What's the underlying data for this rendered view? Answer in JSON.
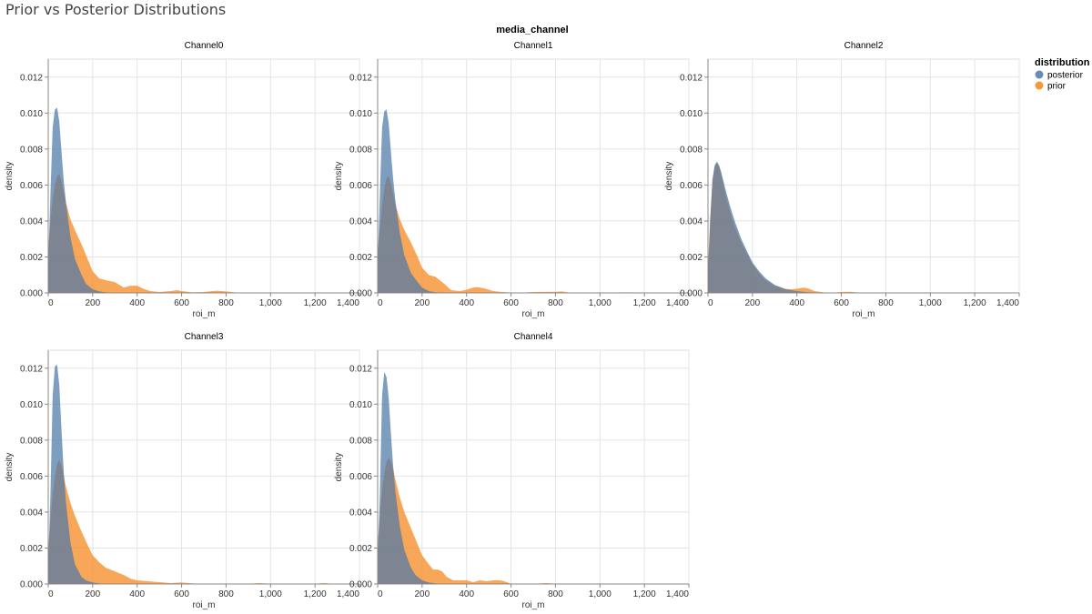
{
  "page": {
    "title": "Prior vs Posterior Distributions"
  },
  "chart_data": {
    "type": "area",
    "facet_field": "media_channel",
    "x_label": "roi_m",
    "y_label": "density",
    "xlim": [
      0,
      1400
    ],
    "ylim": [
      0,
      0.013
    ],
    "x_ticks": [
      0,
      200,
      400,
      600,
      800,
      1000,
      1200,
      1400
    ],
    "x_tick_labels": [
      "0",
      "200",
      "400",
      "600",
      "800",
      "1,000",
      "1,200",
      "1,400"
    ],
    "y_ticks": [
      0,
      0.002,
      0.004,
      0.006,
      0.008,
      0.01,
      0.012
    ],
    "y_tick_labels": [
      "0.000",
      "0.002",
      "0.004",
      "0.006",
      "0.008",
      "0.010",
      "0.012"
    ],
    "grid": true,
    "legend": {
      "title": "distribution",
      "position": "right",
      "items": [
        {
          "label": "posterior",
          "color": "#4c78a8"
        },
        {
          "label": "prior",
          "color": "#f58518"
        }
      ]
    },
    "panels": [
      {
        "title": "Channel0",
        "series": [
          {
            "name": "prior",
            "x": [
              0,
              10,
              20,
              30,
              40,
              50,
              60,
              70,
              80,
              100,
              120,
              150,
              180,
              200,
              230,
              260,
              300,
              340,
              370,
              400,
              430,
              460,
              500,
              550,
              580,
              600,
              650,
              700,
              740,
              760,
              800,
              850,
              900,
              1000,
              1100,
              1300,
              1400
            ],
            "y": [
              0.0025,
              0.004,
              0.0052,
              0.006,
              0.0065,
              0.0066,
              0.0062,
              0.0056,
              0.005,
              0.0041,
              0.0035,
              0.0027,
              0.0018,
              0.0012,
              0.0008,
              0.0007,
              0.0006,
              0.0003,
              0.0004,
              0.0004,
              0.00022,
              0.0001,
              5e-05,
              0.0001,
              0.00015,
              0.0001,
              3e-05,
              5e-05,
              0.0001,
              0.00012,
              8e-05,
              2e-05,
              1e-05,
              1e-05,
              1e-05,
              1e-05,
              1e-05
            ]
          },
          {
            "name": "posterior",
            "x": [
              0,
              10,
              20,
              30,
              40,
              50,
              60,
              70,
              80,
              100,
              120,
              150,
              170,
              200,
              230,
              260,
              300,
              400,
              1400
            ],
            "y": [
              0.0015,
              0.0055,
              0.0092,
              0.0102,
              0.0103,
              0.0095,
              0.0078,
              0.0062,
              0.005,
              0.0031,
              0.0019,
              0.001,
              0.0005,
              0.0002,
              8e-05,
              3e-05,
              1e-05,
              0,
              0
            ]
          }
        ]
      },
      {
        "title": "Channel1",
        "series": [
          {
            "name": "prior",
            "x": [
              0,
              10,
              20,
              30,
              40,
              50,
              60,
              70,
              80,
              100,
              120,
              150,
              180,
              200,
              230,
              260,
              280,
              300,
              330,
              370,
              400,
              430,
              450,
              480,
              520,
              560,
              600,
              650,
              700,
              800,
              830,
              860,
              1000,
              1100,
              1400
            ],
            "y": [
              0.0022,
              0.0035,
              0.0048,
              0.0058,
              0.0064,
              0.0065,
              0.0061,
              0.0055,
              0.0049,
              0.0041,
              0.0035,
              0.0028,
              0.002,
              0.0014,
              0.001,
              0.0009,
              0.0007,
              0.0005,
              0.00015,
              0.0001,
              0.00018,
              0.0003,
              0.00032,
              0.00025,
              0.0001,
              5e-05,
              2e-05,
              1e-05,
              5e-05,
              6e-05,
              8e-05,
              2e-05,
              1e-05,
              3e-05,
              1e-05
            ]
          },
          {
            "name": "posterior",
            "x": [
              0,
              10,
              20,
              30,
              40,
              50,
              60,
              70,
              80,
              100,
              120,
              150,
              180,
              200,
              230,
              260,
              300,
              400,
              1400
            ],
            "y": [
              0.0015,
              0.0055,
              0.0092,
              0.0101,
              0.0102,
              0.0094,
              0.0078,
              0.0063,
              0.0051,
              0.0033,
              0.0021,
              0.0011,
              0.0006,
              0.0003,
              0.0001,
              4e-05,
              1e-05,
              0,
              0
            ]
          }
        ]
      },
      {
        "title": "Channel2",
        "series": [
          {
            "name": "prior",
            "x": [
              0,
              10,
              20,
              30,
              40,
              50,
              60,
              70,
              80,
              100,
              120,
              150,
              180,
              200,
              230,
              260,
              300,
              350,
              380,
              410,
              430,
              450,
              480,
              520,
              560,
              600,
              640,
              680,
              720,
              800,
              1400
            ],
            "y": [
              0.0015,
              0.0042,
              0.0062,
              0.007,
              0.0072,
              0.007,
              0.0065,
              0.006,
              0.0054,
              0.0045,
              0.0037,
              0.0028,
              0.0021,
              0.0016,
              0.0011,
              0.0007,
              0.0004,
              0.00022,
              0.0002,
              0.00025,
              0.0003,
              0.00025,
              0.0001,
              3e-05,
              1e-05,
              5e-05,
              6e-05,
              2e-05,
              1e-05,
              0,
              0
            ]
          },
          {
            "name": "posterior",
            "x": [
              0,
              10,
              20,
              30,
              40,
              50,
              60,
              70,
              80,
              100,
              120,
              150,
              180,
              200,
              230,
              260,
              300,
              350,
              400,
              450,
              500,
              550,
              1400
            ],
            "y": [
              0.001,
              0.004,
              0.0063,
              0.0071,
              0.0073,
              0.0071,
              0.0067,
              0.0062,
              0.0057,
              0.0048,
              0.004,
              0.003,
              0.0022,
              0.0017,
              0.0012,
              0.0008,
              0.00045,
              0.0002,
              0.0001,
              4e-05,
              1e-05,
              0,
              0
            ]
          }
        ]
      },
      {
        "title": "Channel3",
        "series": [
          {
            "name": "prior",
            "x": [
              0,
              10,
              20,
              30,
              40,
              50,
              60,
              70,
              80,
              100,
              120,
              150,
              180,
              200,
              230,
              260,
              300,
              340,
              370,
              400,
              450,
              500,
              550,
              600,
              650,
              700,
              900,
              950,
              1000,
              1200,
              1240,
              1280,
              1400
            ],
            "y": [
              0.002,
              0.0035,
              0.005,
              0.006,
              0.0067,
              0.0069,
              0.0066,
              0.006,
              0.0054,
              0.0045,
              0.0038,
              0.0029,
              0.0021,
              0.0016,
              0.0012,
              0.0009,
              0.0007,
              0.0005,
              0.0003,
              0.0002,
              0.00015,
              0.0001,
              5e-05,
              8e-05,
              3e-05,
              1e-05,
              1e-05,
              5e-05,
              1e-05,
              1e-05,
              5e-05,
              1e-05,
              0
            ]
          },
          {
            "name": "posterior",
            "x": [
              0,
              10,
              20,
              30,
              40,
              50,
              60,
              70,
              80,
              100,
              120,
              150,
              170,
              200,
              230,
              260,
              300,
              1400
            ],
            "y": [
              0.001,
              0.005,
              0.0105,
              0.0121,
              0.0122,
              0.011,
              0.0085,
              0.0062,
              0.0045,
              0.0023,
              0.0011,
              0.0004,
              0.0002,
              8e-05,
              3e-05,
              1e-05,
              0,
              0
            ]
          }
        ]
      },
      {
        "title": "Channel4",
        "series": [
          {
            "name": "prior",
            "x": [
              0,
              10,
              20,
              30,
              40,
              50,
              60,
              70,
              80,
              100,
              120,
              150,
              180,
              200,
              230,
              250,
              270,
              290,
              310,
              340,
              370,
              400,
              430,
              460,
              490,
              520,
              550,
              570,
              600,
              650,
              700,
              760,
              800,
              900,
              1000,
              1400
            ],
            "y": [
              0.0022,
              0.0038,
              0.0052,
              0.0062,
              0.0068,
              0.007,
              0.0068,
              0.0064,
              0.0058,
              0.0048,
              0.004,
              0.0031,
              0.0022,
              0.0016,
              0.0011,
              0.0008,
              0.0008,
              0.0007,
              0.0004,
              0.0002,
              0.0002,
              0.0002,
              0.0001,
              0.0002,
              0.00015,
              0.0002,
              0.0002,
              0.00015,
              1e-05,
              1e-05,
              1e-05,
              5e-05,
              1e-05,
              2e-05,
              1e-05,
              0
            ]
          },
          {
            "name": "posterior",
            "x": [
              0,
              10,
              20,
              30,
              40,
              50,
              60,
              70,
              80,
              100,
              120,
              150,
              170,
              200,
              230,
              260,
              300,
              1400
            ],
            "y": [
              0.001,
              0.005,
              0.0105,
              0.0118,
              0.0115,
              0.0103,
              0.0083,
              0.0065,
              0.0051,
              0.0032,
              0.0019,
              0.0009,
              0.0005,
              0.0002,
              8e-05,
              3e-05,
              0,
              0
            ]
          }
        ]
      }
    ]
  }
}
